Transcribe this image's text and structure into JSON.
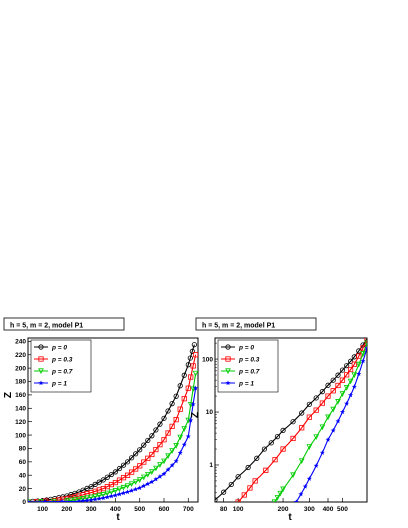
{
  "chart_data": [
    {
      "type": "scatter",
      "title": "h = 5, m = 2, model P1",
      "xlabel": "t",
      "ylabel": "Z",
      "xscale": "linear",
      "yscale": "linear",
      "xlim": [
        40,
        740
      ],
      "ylim": [
        0,
        245
      ],
      "xticks": [
        100,
        200,
        300,
        400,
        500,
        600,
        700
      ],
      "yticks": [
        0,
        20,
        40,
        60,
        80,
        100,
        120,
        140,
        160,
        180,
        200,
        220,
        240
      ],
      "legend_position": "top-left",
      "grid": false,
      "series": [
        {
          "name": "p = 0",
          "color": "#000000",
          "marker": "circle",
          "x": [
            40,
            100,
            150,
            200,
            250,
            300,
            350,
            400,
            450,
            500,
            550,
            600,
            650,
            700,
            725
          ],
          "y": [
            0.5,
            2,
            5,
            9,
            15,
            23,
            33,
            45,
            60,
            78,
            99,
            125,
            158,
            205,
            235
          ]
        },
        {
          "name": "p = 0.3",
          "color": "#ff0000",
          "marker": "square",
          "x": [
            40,
            150,
            200,
            250,
            300,
            350,
            400,
            450,
            500,
            550,
            600,
            650,
            700,
            730
          ],
          "y": [
            0,
            2,
            5,
            9,
            14,
            20,
            29,
            40,
            54,
            71,
            93,
            123,
            170,
            220
          ]
        },
        {
          "name": "p = 0.7",
          "color": "#00cc00",
          "marker": "triangle-down",
          "x": [
            40,
            200,
            250,
            300,
            350,
            400,
            450,
            500,
            550,
            600,
            650,
            700,
            730
          ],
          "y": [
            0,
            1.5,
            4,
            7,
            11,
            17,
            24,
            33,
            45,
            61,
            84,
            122,
            192
          ]
        },
        {
          "name": "p = 1",
          "color": "#0000ff",
          "marker": "star",
          "x": [
            40,
            250,
            300,
            350,
            400,
            450,
            500,
            550,
            600,
            650,
            700,
            730
          ],
          "y": [
            0,
            1,
            3,
            6,
            10,
            15,
            21,
            30,
            42,
            61,
            98,
            170
          ]
        }
      ]
    },
    {
      "type": "scatter",
      "title": "h = 5, m = 2, model P1",
      "xlabel": "t",
      "ylabel": "Z",
      "xscale": "log",
      "yscale": "log",
      "xlim": [
        70,
        730
      ],
      "ylim": [
        0.2,
        250
      ],
      "xticks": [
        80,
        100,
        200,
        300,
        400,
        500
      ],
      "yticks": [
        1,
        10,
        100
      ],
      "legend_position": "top-left",
      "grid": false,
      "series": [
        {
          "name": "p = 0",
          "color": "#000000",
          "marker": "circle",
          "x": [
            70,
            100,
            150,
            200,
            300,
            400,
            500,
            600,
            730
          ],
          "y": [
            0.22,
            0.6,
            2.0,
            4.5,
            14,
            32,
            62,
            110,
            240
          ]
        },
        {
          "name": "p = 0.3",
          "color": "#ff0000",
          "marker": "square",
          "x": [
            100,
            130,
            200,
            300,
            400,
            500,
            600,
            730
          ],
          "y": [
            0.2,
            0.5,
            2.0,
            8,
            20,
            40,
            80,
            230
          ]
        },
        {
          "name": "p = 0.7",
          "color": "#00cc00",
          "marker": "triangle-down",
          "x": [
            175,
            200,
            300,
            400,
            500,
            600,
            730
          ],
          "y": [
            0.2,
            0.35,
            2.2,
            8,
            22,
            50,
            200
          ]
        },
        {
          "name": "p = 1",
          "color": "#0000ff",
          "marker": "star",
          "x": [
            245,
            300,
            400,
            500,
            600,
            730
          ],
          "y": [
            0.2,
            0.55,
            3,
            10,
            30,
            160
          ]
        }
      ]
    }
  ]
}
